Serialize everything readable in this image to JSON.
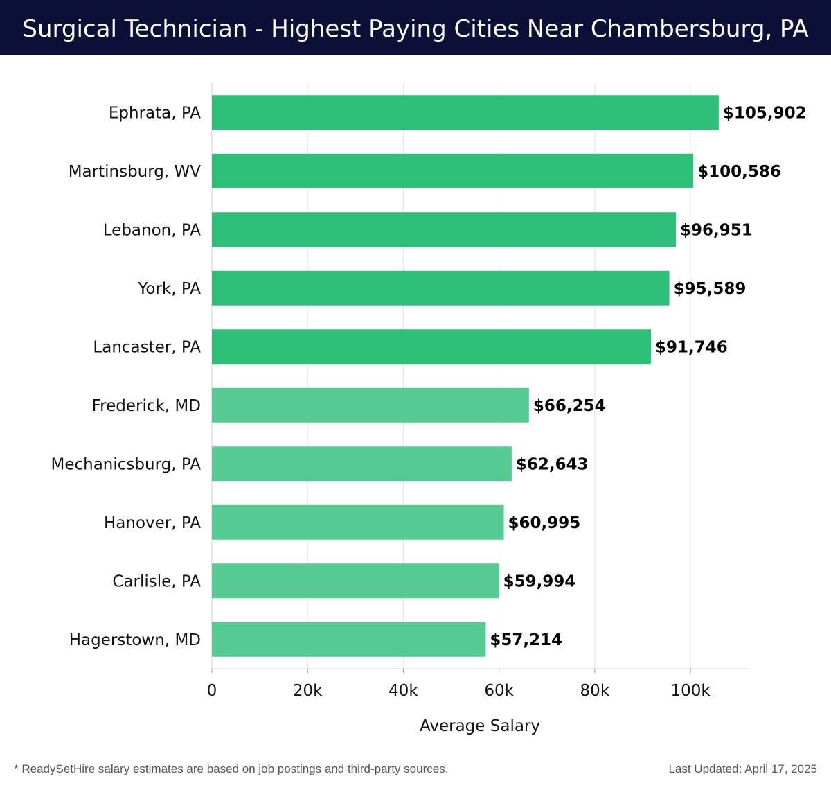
{
  "header": {
    "title": "Surgical Technician - Highest Paying Cities Near Chambersburg, PA"
  },
  "footer": {
    "note": "* ReadySetHire salary estimates are based on job postings and third-party sources.",
    "updated": "Last Updated: April 17, 2025"
  },
  "colors": {
    "header_bg": "#0c1036",
    "bar_top": "#2ebf78",
    "bar_rest": "#55cb93"
  },
  "chart_data": {
    "type": "bar",
    "orientation": "horizontal",
    "categories": [
      "Ephrata, PA",
      "Martinsburg, WV",
      "Lebanon, PA",
      "York, PA",
      "Lancaster, PA",
      "Frederick, MD",
      "Mechanicsburg, PA",
      "Hanover, PA",
      "Carlisle, PA",
      "Hagerstown, MD"
    ],
    "values": [
      105902,
      100586,
      96951,
      95589,
      91746,
      66254,
      62643,
      60995,
      59994,
      57214
    ],
    "value_labels": [
      "$105,902",
      "$100,586",
      "$96,951",
      "$95,589",
      "$91,746",
      "$66,254",
      "$62,643",
      "$60,995",
      "$59,994",
      "$57,214"
    ],
    "highlight_count": 5,
    "xlabel": "Average Salary",
    "ylabel": "",
    "xlim": [
      0,
      112000
    ],
    "xticks": [
      0,
      20000,
      40000,
      60000,
      80000,
      100000
    ],
    "xtick_labels": [
      "0",
      "20k",
      "40k",
      "60k",
      "80k",
      "100k"
    ],
    "grid": "vertical"
  }
}
